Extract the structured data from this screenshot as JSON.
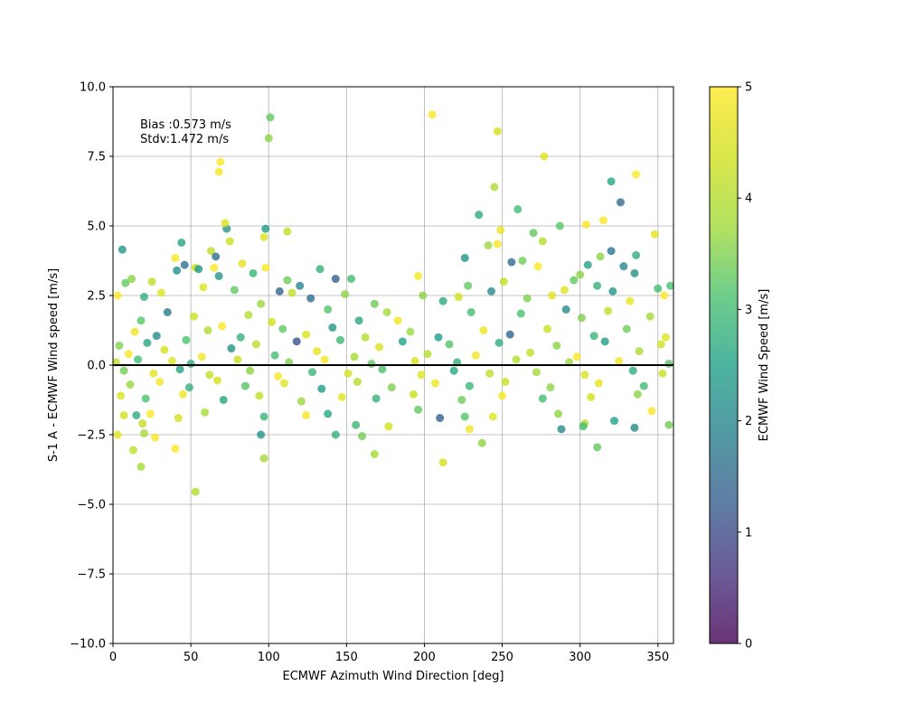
{
  "chart_data": {
    "type": "scatter",
    "title": "",
    "xlabel": "ECMWF Azimuth Wind Direction [deg]",
    "ylabel": "S-1 A - ECMWF Wind speed [m/s]",
    "xlim": [
      0,
      360
    ],
    "ylim": [
      -10,
      10
    ],
    "xticks": [
      0,
      50,
      100,
      150,
      200,
      250,
      300,
      350
    ],
    "xtick_labels": [
      "0",
      "50",
      "100",
      "150",
      "200",
      "250",
      "300",
      "350"
    ],
    "yticks": [
      -10,
      -7.5,
      -5,
      -2.5,
      0,
      2.5,
      5,
      7.5,
      10
    ],
    "ytick_labels": [
      "−10.0",
      "−7.5",
      "−5.0",
      "−2.5",
      "0.0",
      "2.5",
      "5.0",
      "7.5",
      "10.0"
    ],
    "grid": true,
    "reference_line_y": 0,
    "colormap": "viridis",
    "marker_alpha": 0.8,
    "colorbar": {
      "label": "ECMWF Wind Speed [m/s]",
      "range": [
        0,
        5
      ],
      "ticks": [
        0,
        1,
        2,
        3,
        4,
        5
      ],
      "tick_labels": [
        "0",
        "1",
        "2",
        "3",
        "4",
        "5"
      ]
    },
    "annotations": {
      "bias": "Bias :0.573 m/s",
      "stdv": "Stdv:1.472 m/s"
    },
    "points": [
      [
        101,
        8.9,
        3.3
      ],
      [
        205,
        9.0,
        5.0
      ],
      [
        100,
        8.15,
        3.6
      ],
      [
        247,
        8.4,
        4.4
      ],
      [
        69,
        7.3,
        5.0
      ],
      [
        68,
        6.95,
        4.9
      ],
      [
        277,
        7.5,
        4.6
      ],
      [
        245,
        6.4,
        3.9
      ],
      [
        336,
        6.85,
        5.0
      ],
      [
        320,
        6.6,
        2.6
      ],
      [
        326,
        5.85,
        1.5
      ],
      [
        260,
        5.6,
        3.0
      ],
      [
        235,
        5.4,
        2.7
      ],
      [
        304,
        5.05,
        5.0
      ],
      [
        315,
        5.2,
        5.0
      ],
      [
        73,
        4.9,
        2.2
      ],
      [
        72,
        5.1,
        4.5
      ],
      [
        98,
        4.9,
        2.4
      ],
      [
        112,
        4.8,
        4.2
      ],
      [
        287,
        5.0,
        3.2
      ],
      [
        249,
        4.85,
        4.7
      ],
      [
        241,
        4.3,
        3.7
      ],
      [
        247,
        4.35,
        4.9
      ],
      [
        270,
        4.75,
        3.3
      ],
      [
        276,
        4.45,
        4.0
      ],
      [
        6,
        4.15,
        2.3
      ],
      [
        44,
        4.4,
        2.6
      ],
      [
        63,
        4.1,
        4.1
      ],
      [
        75,
        4.45,
        4.3
      ],
      [
        97,
        4.6,
        4.5
      ],
      [
        320,
        4.1,
        1.7
      ],
      [
        313,
        3.9,
        3.6
      ],
      [
        336,
        3.95,
        2.7
      ],
      [
        348,
        4.7,
        4.7
      ],
      [
        40,
        3.85,
        5.0
      ],
      [
        41,
        3.4,
        2.2
      ],
      [
        46,
        3.6,
        1.6
      ],
      [
        53,
        3.5,
        4.2
      ],
      [
        55,
        3.45,
        2.3
      ],
      [
        65,
        3.5,
        5.0
      ],
      [
        66,
        3.9,
        1.6
      ],
      [
        68,
        3.2,
        2.3
      ],
      [
        83,
        3.65,
        4.7
      ],
      [
        90,
        3.3,
        2.9
      ],
      [
        98,
        3.5,
        5.0
      ],
      [
        226,
        3.85,
        2.3
      ],
      [
        256,
        3.7,
        1.5
      ],
      [
        263,
        3.75,
        3.4
      ],
      [
        273,
        3.55,
        5.0
      ],
      [
        305,
        3.6,
        2.5
      ],
      [
        328,
        3.55,
        2.0
      ],
      [
        335,
        3.3,
        2.2
      ],
      [
        8,
        2.95,
        3.3
      ],
      [
        12,
        3.1,
        3.6
      ],
      [
        25,
        3.0,
        4.1
      ],
      [
        31,
        2.6,
        4.6
      ],
      [
        107,
        2.65,
        1.4
      ],
      [
        112,
        3.05,
        3.4
      ],
      [
        115,
        2.6,
        4.2
      ],
      [
        120,
        2.85,
        2.0
      ],
      [
        127,
        2.4,
        1.5
      ],
      [
        133,
        3.45,
        2.8
      ],
      [
        143,
        3.1,
        1.3
      ],
      [
        153,
        3.1,
        3.0
      ],
      [
        196,
        3.2,
        4.9
      ],
      [
        228,
        2.85,
        3.3
      ],
      [
        243,
        2.65,
        2.0
      ],
      [
        251,
        3.0,
        4.2
      ],
      [
        290,
        2.7,
        4.6
      ],
      [
        296,
        3.05,
        3.3
      ],
      [
        300,
        3.25,
        3.6
      ],
      [
        311,
        2.85,
        2.8
      ],
      [
        321,
        2.65,
        2.3
      ],
      [
        350,
        2.75,
        3.0
      ],
      [
        358,
        2.85,
        3.1
      ],
      [
        3,
        2.5,
        5.0
      ],
      [
        20,
        2.45,
        2.8
      ],
      [
        58,
        2.8,
        4.6
      ],
      [
        78,
        2.7,
        3.3
      ],
      [
        95,
        2.2,
        3.7
      ],
      [
        149,
        2.55,
        3.6
      ],
      [
        168,
        2.2,
        3.4
      ],
      [
        199,
        2.5,
        3.6
      ],
      [
        212,
        2.3,
        2.7
      ],
      [
        222,
        2.45,
        4.4
      ],
      [
        266,
        2.4,
        3.5
      ],
      [
        282,
        2.5,
        4.6
      ],
      [
        291,
        2.0,
        2.1
      ],
      [
        332,
        2.3,
        4.7
      ],
      [
        354,
        2.5,
        5.0
      ],
      [
        18,
        1.6,
        3.2
      ],
      [
        35,
        1.9,
        1.8
      ],
      [
        52,
        1.75,
        4.3
      ],
      [
        87,
        1.8,
        4.0
      ],
      [
        102,
        1.55,
        4.4
      ],
      [
        138,
        2.0,
        3.2
      ],
      [
        158,
        1.6,
        2.6
      ],
      [
        176,
        1.9,
        3.8
      ],
      [
        183,
        1.6,
        4.8
      ],
      [
        230,
        1.9,
        3.0
      ],
      [
        262,
        1.85,
        3.1
      ],
      [
        301,
        1.7,
        3.5
      ],
      [
        318,
        1.95,
        4.2
      ],
      [
        345,
        1.75,
        3.8
      ],
      [
        14,
        1.2,
        4.8
      ],
      [
        28,
        1.05,
        2.1
      ],
      [
        61,
        1.25,
        3.9
      ],
      [
        70,
        1.4,
        5.0
      ],
      [
        82,
        1.0,
        2.8
      ],
      [
        109,
        1.3,
        3.3
      ],
      [
        124,
        1.1,
        4.5
      ],
      [
        141,
        1.35,
        2.3
      ],
      [
        162,
        1.0,
        4.0
      ],
      [
        191,
        1.2,
        3.7
      ],
      [
        209,
        1.0,
        2.4
      ],
      [
        238,
        1.25,
        4.8
      ],
      [
        255,
        1.1,
        1.4
      ],
      [
        279,
        1.3,
        4.3
      ],
      [
        309,
        1.05,
        2.9
      ],
      [
        330,
        1.3,
        3.4
      ],
      [
        355,
        1.0,
        4.6
      ],
      [
        4,
        0.7,
        3.5
      ],
      [
        10,
        0.4,
        4.9
      ],
      [
        22,
        0.8,
        2.6
      ],
      [
        33,
        0.55,
        4.4
      ],
      [
        47,
        0.9,
        3.1
      ],
      [
        57,
        0.3,
        4.8
      ],
      [
        76,
        0.6,
        2.2
      ],
      [
        92,
        0.75,
        4.1
      ],
      [
        104,
        0.35,
        3.0
      ],
      [
        118,
        0.85,
        1.1
      ],
      [
        131,
        0.5,
        4.7
      ],
      [
        146,
        0.9,
        2.9
      ],
      [
        155,
        0.3,
        3.8
      ],
      [
        171,
        0.65,
        4.5
      ],
      [
        186,
        0.85,
        2.5
      ],
      [
        202,
        0.4,
        4.0
      ],
      [
        216,
        0.75,
        3.2
      ],
      [
        233,
        0.35,
        4.9
      ],
      [
        248,
        0.8,
        2.7
      ],
      [
        268,
        0.45,
        4.2
      ],
      [
        285,
        0.7,
        3.6
      ],
      [
        298,
        0.3,
        5.0
      ],
      [
        316,
        0.85,
        2.4
      ],
      [
        338,
        0.5,
        3.9
      ],
      [
        352,
        0.75,
        4.4
      ],
      [
        2,
        0.1,
        4.1
      ],
      [
        16,
        0.2,
        3.0
      ],
      [
        38,
        0.15,
        4.6
      ],
      [
        50,
        0.05,
        2.7
      ],
      [
        80,
        0.2,
        4.3
      ],
      [
        113,
        0.1,
        3.5
      ],
      [
        136,
        0.2,
        4.9
      ],
      [
        166,
        0.05,
        3.3
      ],
      [
        194,
        0.15,
        4.5
      ],
      [
        221,
        0.1,
        2.8
      ],
      [
        259,
        0.2,
        4.0
      ],
      [
        293,
        0.1,
        3.7
      ],
      [
        325,
        0.15,
        4.8
      ],
      [
        357,
        0.05,
        3.2
      ],
      [
        7,
        -0.2,
        3.4
      ],
      [
        26,
        -0.3,
        4.7
      ],
      [
        43,
        -0.15,
        2.5
      ],
      [
        62,
        -0.35,
        4.2
      ],
      [
        88,
        -0.2,
        3.6
      ],
      [
        106,
        -0.4,
        4.9
      ],
      [
        128,
        -0.25,
        2.9
      ],
      [
        151,
        -0.3,
        4.4
      ],
      [
        173,
        -0.15,
        3.1
      ],
      [
        198,
        -0.35,
        4.6
      ],
      [
        219,
        -0.2,
        2.6
      ],
      [
        242,
        -0.3,
        4.1
      ],
      [
        272,
        -0.25,
        3.8
      ],
      [
        303,
        -0.35,
        4.5
      ],
      [
        334,
        -0.2,
        2.7
      ],
      [
        353,
        -0.3,
        4.3
      ],
      [
        11,
        -0.7,
        3.7
      ],
      [
        30,
        -0.6,
        4.9
      ],
      [
        49,
        -0.8,
        2.8
      ],
      [
        67,
        -0.55,
        4.4
      ],
      [
        85,
        -0.75,
        3.2
      ],
      [
        110,
        -0.65,
        4.6
      ],
      [
        134,
        -0.85,
        2.4
      ],
      [
        157,
        -0.6,
        4.0
      ],
      [
        179,
        -0.8,
        3.5
      ],
      [
        207,
        -0.65,
        4.8
      ],
      [
        229,
        -0.75,
        2.9
      ],
      [
        252,
        -0.6,
        4.3
      ],
      [
        281,
        -0.8,
        3.6
      ],
      [
        312,
        -0.65,
        4.7
      ],
      [
        341,
        -0.75,
        3.0
      ],
      [
        5,
        -1.1,
        4.5
      ],
      [
        21,
        -1.2,
        3.1
      ],
      [
        45,
        -1.05,
        4.8
      ],
      [
        71,
        -1.25,
        2.6
      ],
      [
        94,
        -1.1,
        4.2
      ],
      [
        121,
        -1.3,
        3.7
      ],
      [
        147,
        -1.15,
        4.6
      ],
      [
        169,
        -1.2,
        2.8
      ],
      [
        193,
        -1.05,
        4.3
      ],
      [
        224,
        -1.25,
        3.4
      ],
      [
        250,
        -1.1,
        4.9
      ],
      [
        276,
        -1.2,
        3.0
      ],
      [
        307,
        -1.15,
        4.4
      ],
      [
        337,
        -1.05,
        3.6
      ],
      [
        7,
        -1.8,
        4.4
      ],
      [
        15,
        -1.8,
        2.7
      ],
      [
        19,
        -2.1,
        4.2
      ],
      [
        24,
        -1.75,
        5.0
      ],
      [
        42,
        -1.9,
        4.4
      ],
      [
        59,
        -1.7,
        3.8
      ],
      [
        97,
        -1.85,
        2.9
      ],
      [
        124,
        -1.8,
        4.9
      ],
      [
        138,
        -1.75,
        2.6
      ],
      [
        156,
        -2.15,
        2.9
      ],
      [
        177,
        -2.2,
        4.4
      ],
      [
        196,
        -1.6,
        3.3
      ],
      [
        210,
        -1.9,
        1.3
      ],
      [
        226,
        -1.85,
        3.2
      ],
      [
        244,
        -1.85,
        4.6
      ],
      [
        286,
        -1.75,
        3.6
      ],
      [
        303,
        -2.1,
        4.0
      ],
      [
        322,
        -2.0,
        2.5
      ],
      [
        346,
        -1.65,
        4.9
      ],
      [
        357,
        -2.15,
        3.4
      ],
      [
        3,
        -2.5,
        4.6
      ],
      [
        20,
        -2.45,
        3.8
      ],
      [
        27,
        -2.6,
        4.9
      ],
      [
        95,
        -2.5,
        2.2
      ],
      [
        143,
        -2.5,
        2.8
      ],
      [
        160,
        -2.55,
        3.4
      ],
      [
        229,
        -2.3,
        4.8
      ],
      [
        237,
        -2.8,
        3.6
      ],
      [
        288,
        -2.3,
        2.1
      ],
      [
        302,
        -2.2,
        3.0
      ],
      [
        335,
        -2.25,
        2.1
      ],
      [
        13,
        -3.05,
        4.1
      ],
      [
        40,
        -3.0,
        5.0
      ],
      [
        97,
        -3.35,
        3.8
      ],
      [
        168,
        -3.2,
        3.8
      ],
      [
        212,
        -3.5,
        4.4
      ],
      [
        311,
        -2.95,
        3.3
      ],
      [
        18,
        -3.65,
        3.8
      ],
      [
        53,
        -4.55,
        4.0
      ]
    ]
  }
}
